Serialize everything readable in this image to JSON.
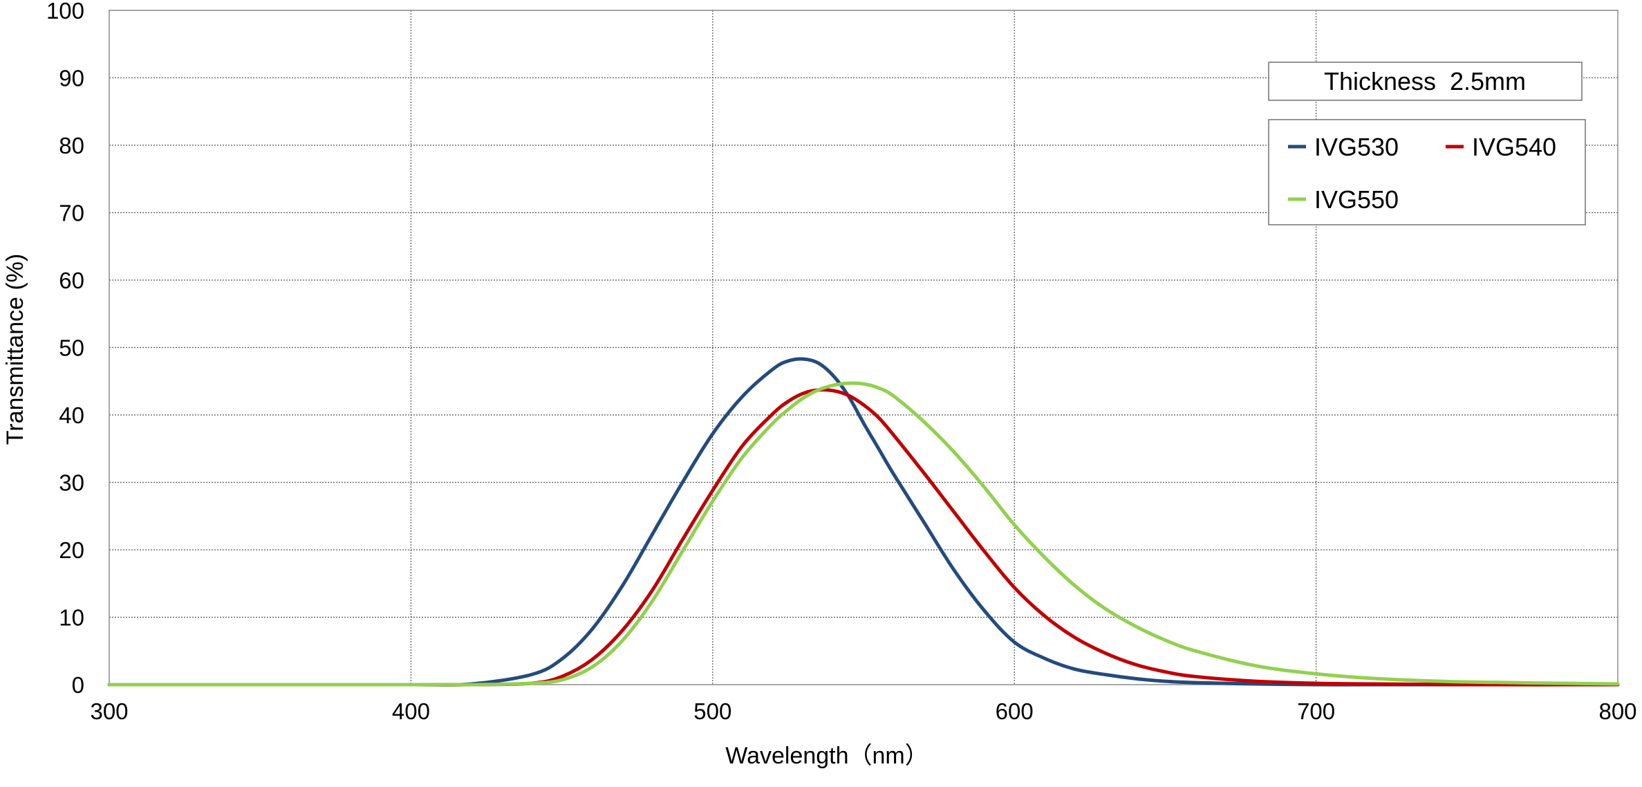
{
  "chart_data": {
    "type": "line",
    "title": "",
    "xlabel": "Wavelength（nm）",
    "ylabel": "Transmittance (%)",
    "xlim": [
      300,
      800
    ],
    "ylim": [
      0,
      100
    ],
    "xticks": [
      300,
      400,
      500,
      600,
      700,
      800
    ],
    "yticks": [
      0,
      10,
      20,
      30,
      40,
      50,
      60,
      70,
      80,
      90,
      100
    ],
    "grid": true,
    "annotation": "Thickness  2.5mm",
    "legend": {
      "placement": "top-right",
      "columns": 2
    },
    "x": [
      300,
      350,
      400,
      420,
      440,
      450,
      460,
      470,
      480,
      490,
      500,
      510,
      520,
      525,
      530,
      535,
      540,
      545,
      550,
      555,
      560,
      570,
      580,
      590,
      600,
      610,
      620,
      630,
      640,
      650,
      660,
      680,
      700,
      720,
      750,
      800
    ],
    "series": [
      {
        "name": "IVG530",
        "color": "#244b7d",
        "values": [
          0,
          0,
          0,
          0.1,
          1.5,
          3.8,
          8.2,
          14.6,
          22.3,
          30.0,
          37.2,
          42.8,
          46.8,
          48.0,
          48.3,
          47.7,
          45.8,
          42.8,
          38.8,
          35.0,
          31.2,
          24.1,
          17.0,
          11.0,
          6.3,
          3.9,
          2.3,
          1.5,
          0.9,
          0.5,
          0.3,
          0.1,
          0,
          0,
          0,
          0
        ]
      },
      {
        "name": "IVG540",
        "color": "#c00000",
        "values": [
          0,
          0,
          0,
          0,
          0.2,
          1.2,
          3.7,
          8.0,
          14.0,
          21.5,
          28.8,
          35.5,
          40.2,
          42.0,
          43.2,
          43.7,
          43.6,
          42.9,
          41.5,
          39.6,
          37.0,
          31.4,
          25.6,
          19.8,
          14.4,
          10.2,
          7.0,
          4.7,
          3.0,
          1.9,
          1.2,
          0.5,
          0.2,
          0.1,
          0,
          0
        ]
      },
      {
        "name": "IVG550",
        "color": "#92d050",
        "values": [
          0,
          0,
          0,
          0,
          0.2,
          0.7,
          2.6,
          6.5,
          12.4,
          19.8,
          27.2,
          33.8,
          38.8,
          40.8,
          42.5,
          43.7,
          44.4,
          44.7,
          44.6,
          44.0,
          42.8,
          39.0,
          34.5,
          29.3,
          23.7,
          18.9,
          14.7,
          11.3,
          8.7,
          6.6,
          5.0,
          2.8,
          1.6,
          0.9,
          0.4,
          0.1
        ]
      }
    ]
  }
}
